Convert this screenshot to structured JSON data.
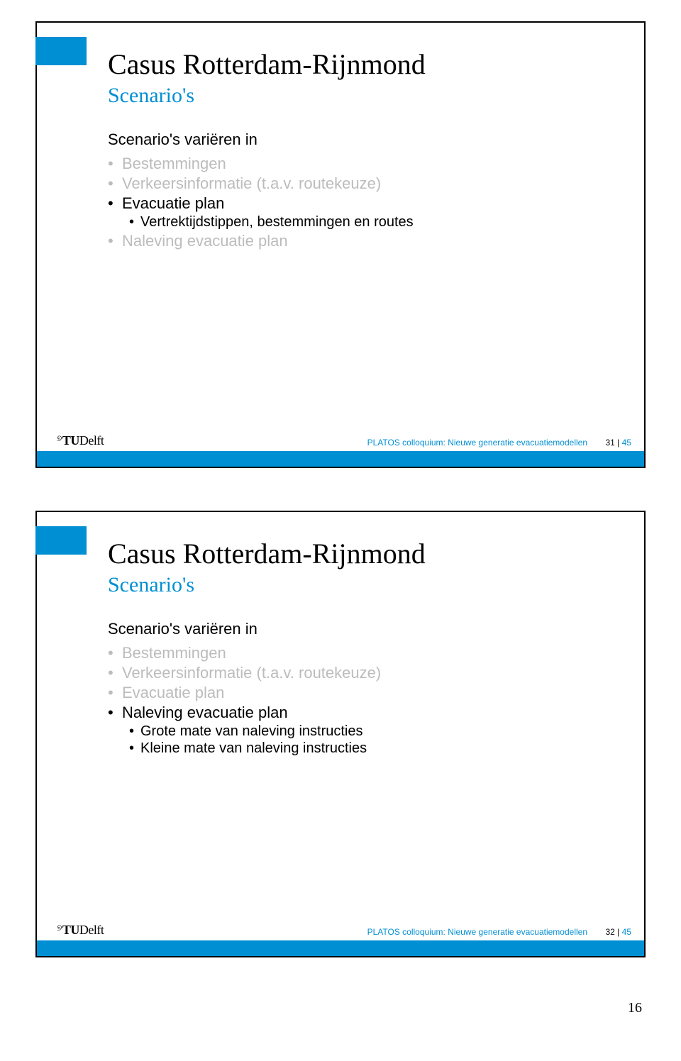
{
  "colors": {
    "accent": "#008fd3",
    "grey": "#bcbcbc",
    "black": "#000000",
    "white": "#ffffff"
  },
  "slide1": {
    "title": "Casus Rotterdam-Rijnmond",
    "subtitle": "Scenario's",
    "lead": "Scenario's variëren in",
    "bullets": [
      {
        "text": "Bestemmingen",
        "grey": true
      },
      {
        "text": "Verkeersinformatie (t.a.v. routekeuze)",
        "grey": true
      },
      {
        "text": "Evacuatie plan",
        "grey": false,
        "sub": [
          {
            "text": "Vertrektijdstippen, bestemmingen en routes",
            "grey": false
          }
        ]
      },
      {
        "text": "Naleving evacuatie plan",
        "grey": true
      }
    ],
    "footer": {
      "logo_prefix": "T",
      "logo_u": "U",
      "logo_name": "Delft",
      "text": "PLATOS colloquium: Nieuwe generatie evacuatiemodellen",
      "page": "31",
      "total": "45"
    }
  },
  "slide2": {
    "title": "Casus Rotterdam-Rijnmond",
    "subtitle": "Scenario's",
    "lead": "Scenario's variëren in",
    "bullets": [
      {
        "text": "Bestemmingen",
        "grey": true
      },
      {
        "text": "Verkeersinformatie (t.a.v. routekeuze)",
        "grey": true
      },
      {
        "text": "Evacuatie plan",
        "grey": true
      },
      {
        "text": "Naleving evacuatie plan",
        "grey": false,
        "sub": [
          {
            "text": "Grote mate van naleving instructies",
            "grey": false
          },
          {
            "text": "Kleine mate van naleving instructies",
            "grey": false
          }
        ]
      }
    ],
    "footer": {
      "logo_prefix": "T",
      "logo_u": "U",
      "logo_name": "Delft",
      "text": "PLATOS colloquium: Nieuwe generatie evacuatiemodellen",
      "page": "32",
      "total": "45"
    }
  },
  "doc_page": "16"
}
